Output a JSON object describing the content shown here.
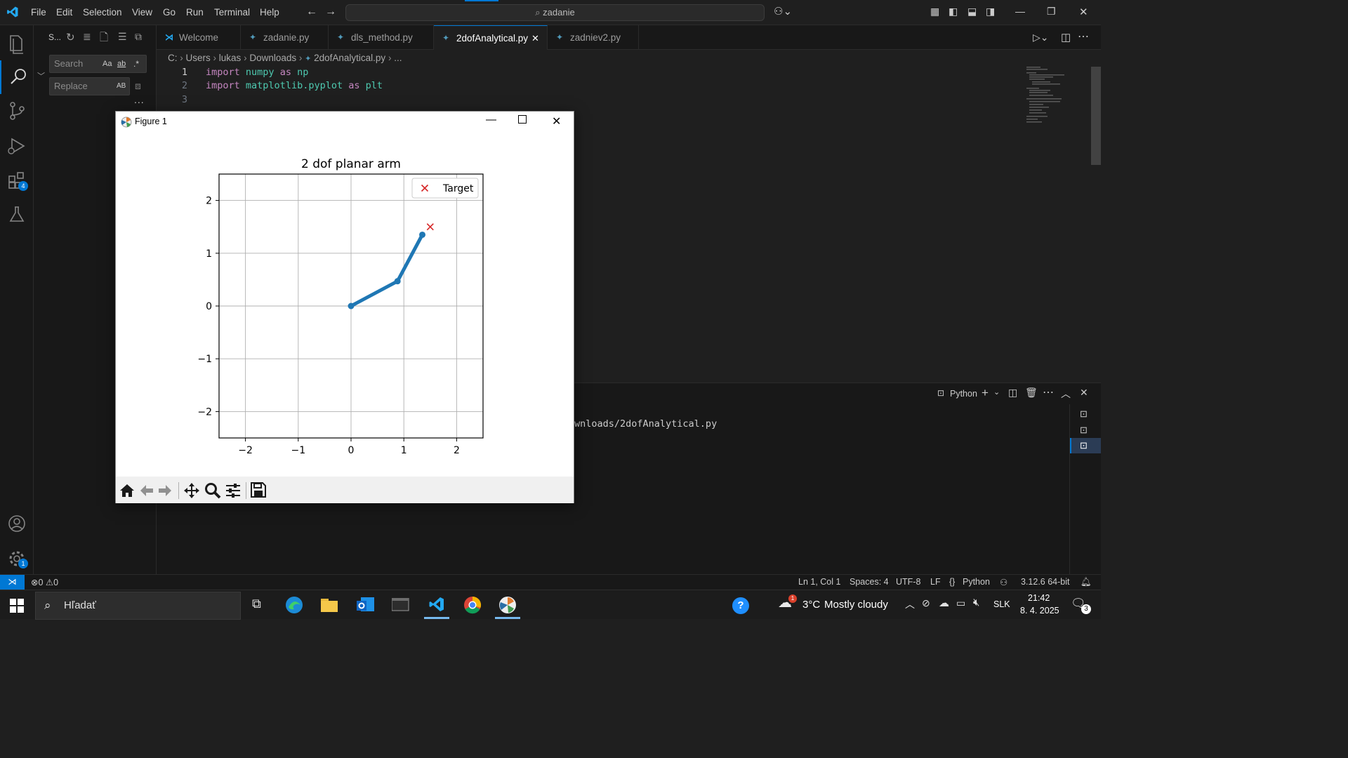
{
  "menu": [
    "File",
    "Edit",
    "Selection",
    "View",
    "Go",
    "Run",
    "Terminal",
    "Help"
  ],
  "command_center": "zadanie",
  "sidebar": {
    "title": "S...",
    "search_placeholder": "Search",
    "replace_placeholder": "Replace",
    "match_case": "Aa",
    "whole_word": "ab",
    "regex": ".*",
    "preserve_case": "AB",
    "more": "..."
  },
  "activity_badges": {
    "extensions": "4",
    "settings": "1"
  },
  "tabs": [
    {
      "label": "Welcome",
      "icon": "vscode-icon"
    },
    {
      "label": "zadanie.py",
      "icon": "python-icon"
    },
    {
      "label": "dls_method.py",
      "icon": "python-icon"
    },
    {
      "label": "2dofAnalytical.py",
      "icon": "python-icon",
      "active": true
    },
    {
      "label": "zadniev2.py",
      "icon": "python-icon"
    }
  ],
  "breadcrumb": [
    "C:",
    "Users",
    "lukas",
    "Downloads",
    "2dofAnalytical.py",
    "..."
  ],
  "editor": {
    "line_numbers": [
      "1",
      "2",
      "3"
    ],
    "lines": [
      [
        {
          "t": "import",
          "c": "kw"
        },
        {
          "t": " ",
          "c": "plain"
        },
        {
          "t": "numpy",
          "c": "mod"
        },
        {
          "t": " ",
          "c": "plain"
        },
        {
          "t": "as",
          "c": "kw"
        },
        {
          "t": " ",
          "c": "plain"
        },
        {
          "t": "np",
          "c": "mod"
        }
      ],
      [
        {
          "t": "import",
          "c": "kw"
        },
        {
          "t": " ",
          "c": "plain"
        },
        {
          "t": "matplotlib.pyplot",
          "c": "mod"
        },
        {
          "t": " ",
          "c": "plain"
        },
        {
          "t": "as",
          "c": "kw"
        },
        {
          "t": " ",
          "c": "plain"
        },
        {
          "t": "plt",
          "c": "mod"
        }
      ]
    ]
  },
  "terminal": {
    "shell": "Python",
    "visible_text": "wnloads/2dofAnalytical.py"
  },
  "statusbar": {
    "errors": "0",
    "warnings": "0",
    "position": "Ln 1, Col 1",
    "spaces": "Spaces: 4",
    "encoding": "UTF-8",
    "eol": "LF",
    "language": "Python",
    "interpreter": "3.12.6 64-bit"
  },
  "taskbar": {
    "search": "Hľadať",
    "weather_temp": "3°C",
    "weather_desc": "Mostly cloudy",
    "weather_badge": "1",
    "lang": "SLK",
    "time": "21:42",
    "date": "8. 4. 2025",
    "notif_count": "3"
  },
  "figure": {
    "window_title": "Figure 1"
  },
  "chart_data": {
    "type": "line",
    "title": "2 dof planar arm",
    "xlim": [
      -2.5,
      2.5
    ],
    "ylim": [
      -2.5,
      2.5
    ],
    "xticks": [
      -2,
      -1,
      0,
      1,
      2
    ],
    "yticks": [
      -2,
      -1,
      0,
      1,
      2
    ],
    "xtick_labels": [
      "−2",
      "−1",
      "0",
      "1",
      "2"
    ],
    "ytick_labels": [
      "−2",
      "−1",
      "0",
      "1",
      "2"
    ],
    "grid": true,
    "legend_position": "upper right",
    "series": [
      {
        "x": [
          0,
          0.88,
          1.35
        ],
        "y": [
          0,
          0.47,
          1.35
        ],
        "color": "#1f77b4",
        "marker": "o"
      },
      {
        "name": "Target",
        "x": [
          1.5
        ],
        "y": [
          1.5
        ],
        "color": "#d62728",
        "marker": "x"
      }
    ]
  }
}
